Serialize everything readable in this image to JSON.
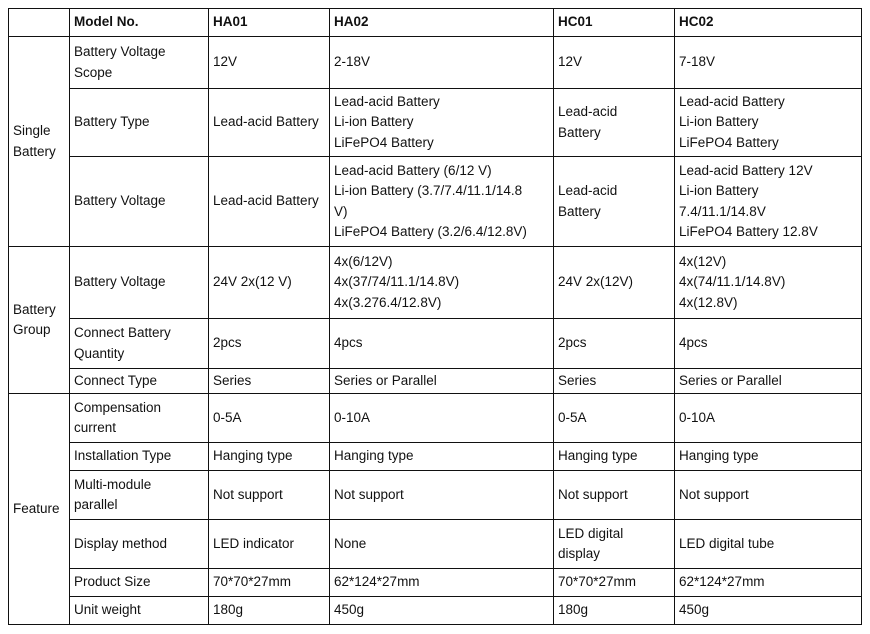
{
  "header": {
    "blank": "",
    "label": "Model No.",
    "models": [
      "HA01",
      "HA02",
      "HC01",
      "HC02"
    ]
  },
  "groups": [
    {
      "name": "Single\nBattery",
      "rows": [
        {
          "label": "Battery Voltage\nScope",
          "values": [
            "12V",
            "2-18V",
            "12V",
            "7-18V"
          ]
        },
        {
          "label": "Battery Type",
          "values": [
            "Lead-acid Battery",
            "Lead-acid Battery\nLi-ion Battery\nLiFePO4 Battery",
            "Lead-acid\nBattery",
            "Lead-acid Battery\nLi-ion Battery\nLiFePO4 Battery"
          ]
        },
        {
          "label": "Battery Voltage",
          "values": [
            "Lead-acid Battery",
            "Lead-acid Battery (6/12 V)\nLi-ion Battery (3.7/7.4/11.1/14.8\nV)\nLiFePO4 Battery (3.2/6.4/12.8V)",
            "Lead-acid\nBattery",
            "Lead-acid Battery 12V\nLi-ion Battery\n7.4/11.1/14.8V\nLiFePO4 Battery 12.8V"
          ]
        }
      ]
    },
    {
      "name": "Battery\nGroup",
      "rows": [
        {
          "label": "Battery Voltage",
          "values": [
            "24V 2x(12 V)",
            "4x(6/12V)\n4x(37/74/11.1/14.8V)\n4x(3.276.4/12.8V)",
            "24V 2x(12V)",
            "4x(12V)\n4x(74/11.1/14.8V)\n4x(12.8V)"
          ]
        },
        {
          "label": "Connect Battery\nQuantity",
          "values": [
            "2pcs",
            "4pcs",
            "2pcs",
            "4pcs"
          ]
        },
        {
          "label": "Connect Type",
          "values": [
            "Series",
            "Series or Parallel",
            "Series",
            "Series or Parallel"
          ]
        }
      ]
    },
    {
      "name": "Feature",
      "rows": [
        {
          "label": "Compensation\ncurrent",
          "values": [
            "0-5A",
            "0-10A",
            "0-5A",
            "0-10A"
          ]
        },
        {
          "label": "Installation Type",
          "values": [
            "Hanging type",
            "Hanging type",
            "Hanging type",
            "Hanging type"
          ]
        },
        {
          "label": "Multi-module\nparallel",
          "values": [
            "Not support",
            "Not support",
            "Not support",
            "Not support"
          ]
        },
        {
          "label": "Display method",
          "values": [
            "LED indicator",
            "None",
            "LED digital\ndisplay",
            "LED digital tube"
          ]
        },
        {
          "label": "Product Size",
          "values": [
            "70*70*27mm",
            "62*124*27mm",
            "70*70*27mm",
            "62*124*27mm"
          ]
        },
        {
          "label": "Unit weight",
          "values": [
            "180g",
            "450g",
            "180g",
            "450g"
          ]
        }
      ]
    }
  ]
}
